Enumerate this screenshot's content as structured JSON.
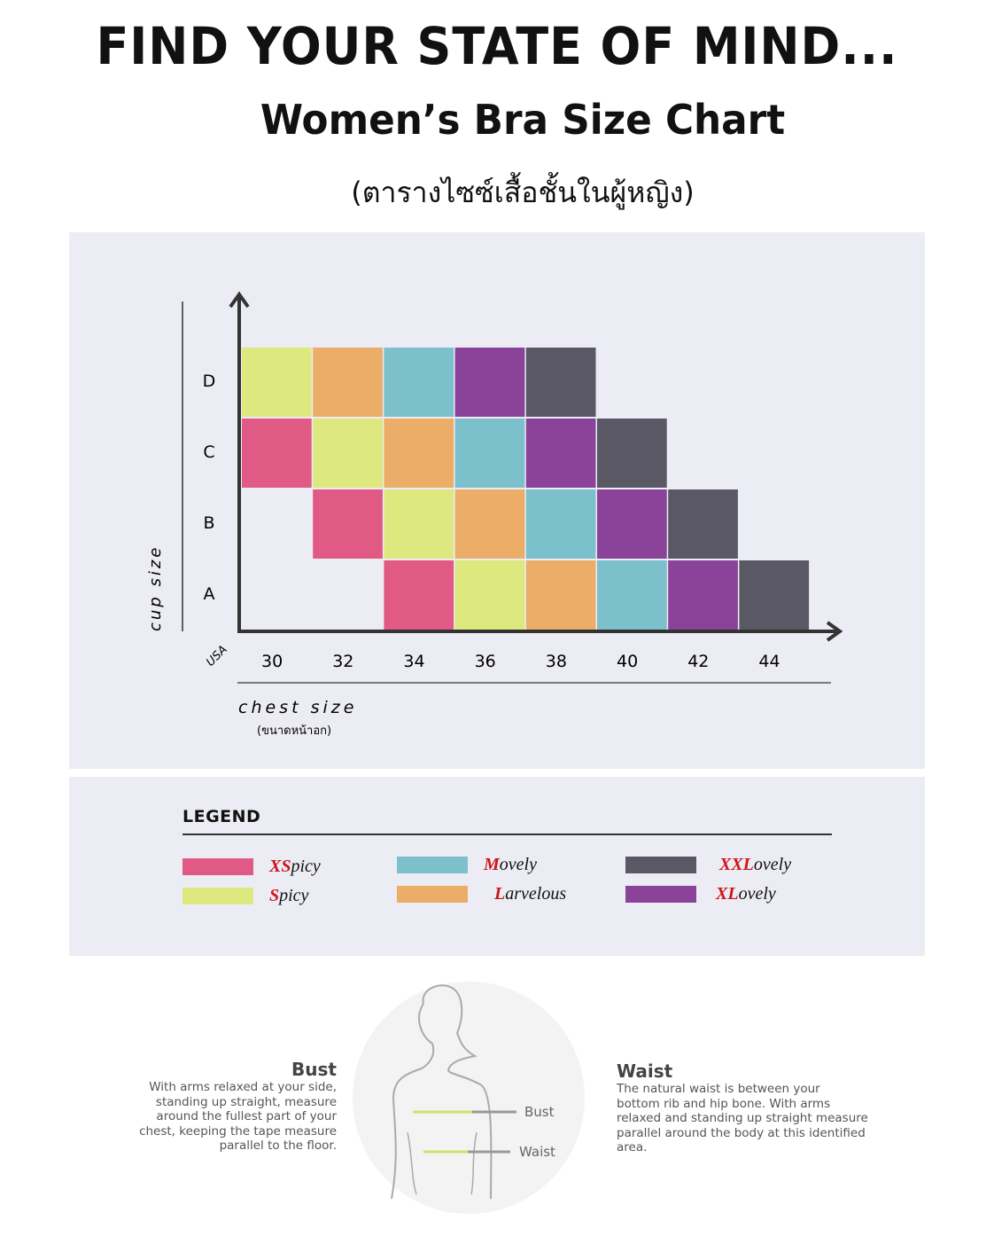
{
  "header": {
    "title": "FIND YOUR STATE OF MIND...",
    "subtitle": "Women’s Bra Size Chart",
    "thai_subtitle": "(ตารางไซซ์เสื้อชั้นในผู้หญิง)"
  },
  "chart_data": {
    "type": "heatmap",
    "ylabel": "cup size",
    "xlabel": "chest size",
    "xlabel_thai": "(ขนาดหน้าอก)",
    "x_unit_label": "USA",
    "x_categories": [
      "30",
      "32",
      "34",
      "36",
      "38",
      "40",
      "42",
      "44"
    ],
    "y_categories": [
      "A",
      "B",
      "C",
      "D"
    ],
    "cells": [
      {
        "cup": "D",
        "chest": "30",
        "size": "S"
      },
      {
        "cup": "D",
        "chest": "32",
        "size": "L"
      },
      {
        "cup": "D",
        "chest": "34",
        "size": "M"
      },
      {
        "cup": "D",
        "chest": "36",
        "size": "XL"
      },
      {
        "cup": "D",
        "chest": "38",
        "size": "XXL"
      },
      {
        "cup": "C",
        "chest": "30",
        "size": "XS"
      },
      {
        "cup": "C",
        "chest": "32",
        "size": "S"
      },
      {
        "cup": "C",
        "chest": "34",
        "size": "L"
      },
      {
        "cup": "C",
        "chest": "36",
        "size": "M"
      },
      {
        "cup": "C",
        "chest": "38",
        "size": "XL"
      },
      {
        "cup": "C",
        "chest": "40",
        "size": "XXL"
      },
      {
        "cup": "B",
        "chest": "32",
        "size": "XS"
      },
      {
        "cup": "B",
        "chest": "34",
        "size": "S"
      },
      {
        "cup": "B",
        "chest": "36",
        "size": "L"
      },
      {
        "cup": "B",
        "chest": "38",
        "size": "M"
      },
      {
        "cup": "B",
        "chest": "40",
        "size": "XL"
      },
      {
        "cup": "B",
        "chest": "42",
        "size": "XXL"
      },
      {
        "cup": "A",
        "chest": "34",
        "size": "XS"
      },
      {
        "cup": "A",
        "chest": "36",
        "size": "S"
      },
      {
        "cup": "A",
        "chest": "38",
        "size": "L"
      },
      {
        "cup": "A",
        "chest": "40",
        "size": "M"
      },
      {
        "cup": "A",
        "chest": "42",
        "size": "XL"
      },
      {
        "cup": "A",
        "chest": "44",
        "size": "XXL"
      }
    ],
    "colors": {
      "XS": "#e05a85",
      "S": "#dde87f",
      "M": "#7cc0cc",
      "L": "#ecad68",
      "XL": "#8a4399",
      "XXL": "#5b5866"
    },
    "legend": {
      "title": "LEGEND",
      "placement": "bottom",
      "items": [
        {
          "size": "XS",
          "prefix": "XS",
          "suffix": "picy"
        },
        {
          "size": "S",
          "prefix": "S",
          "suffix": "picy"
        },
        {
          "size": "M",
          "prefix": "M",
          "suffix": "ovely"
        },
        {
          "size": "L",
          "prefix": "L",
          "suffix": "arvelous"
        },
        {
          "size": "XXL",
          "prefix": "XXL",
          "suffix": "ovely"
        },
        {
          "size": "XL",
          "prefix": "XL",
          "suffix": "ovely"
        }
      ]
    }
  },
  "measure": {
    "bust": {
      "title": "Bust",
      "text": [
        "With arms relaxed at your side,",
        "standing up straight, measure",
        "around the fullest part of your",
        "chest, keeping the tape measure",
        "parallel to the floor."
      ],
      "label": "Bust"
    },
    "waist": {
      "title": "Waist",
      "text": [
        "The natural waist is between your",
        "bottom rib and hip bone. With arms",
        "relaxed and standing up straight measure",
        "parallel around the body at this identified",
        "area."
      ],
      "label": "Waist"
    },
    "accent_color": "#d4e06a"
  }
}
